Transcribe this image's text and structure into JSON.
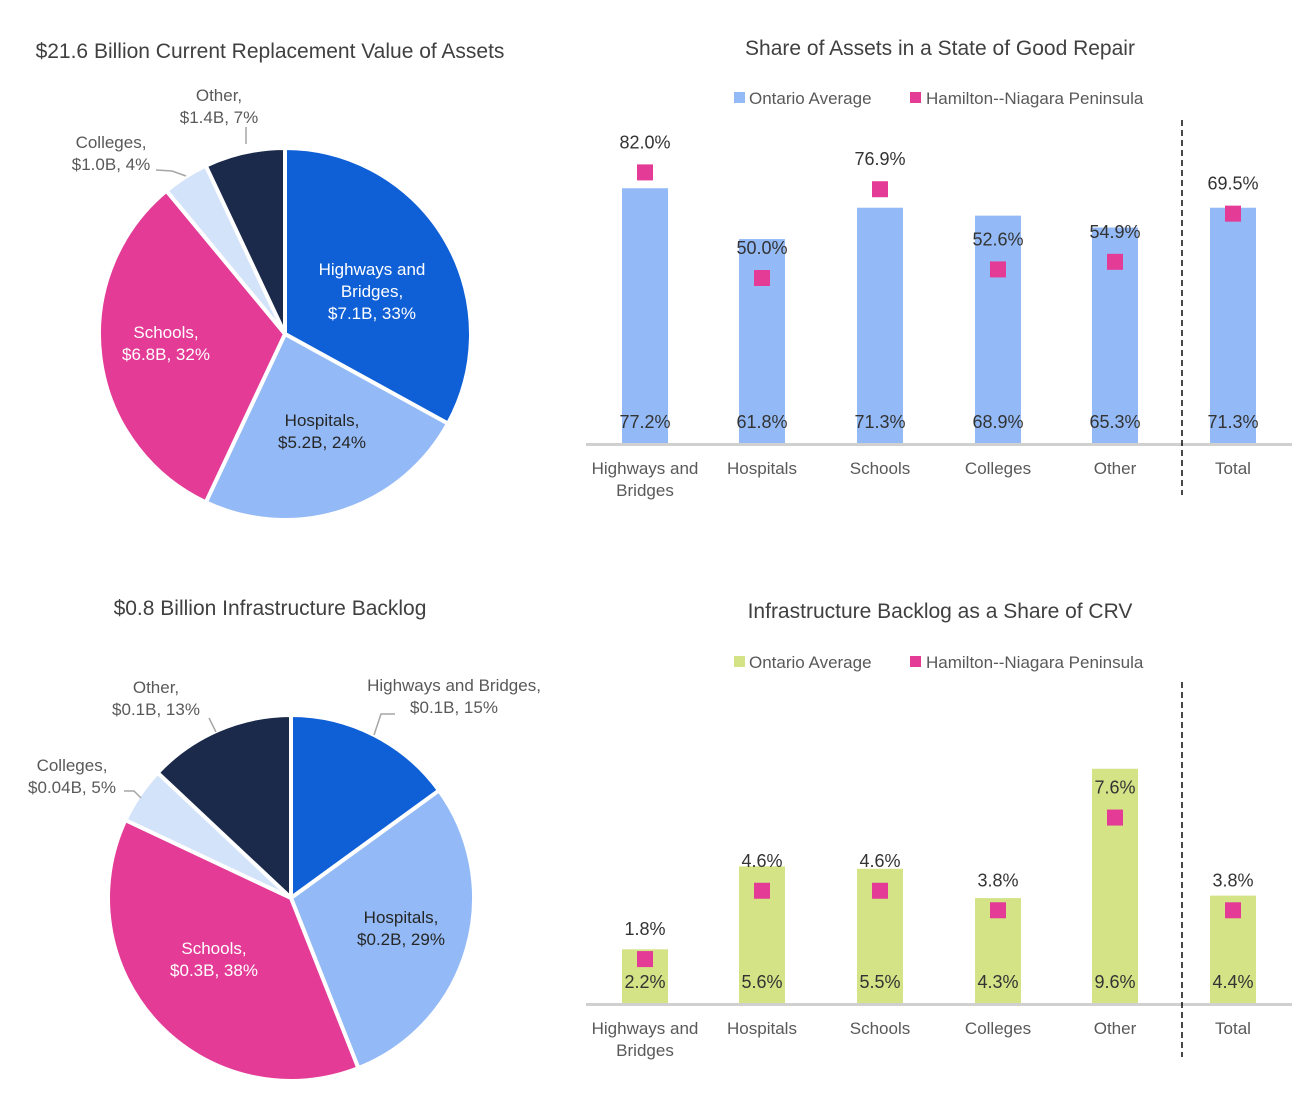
{
  "colors": {
    "highways": "#0F5FD6",
    "hospitals": "#93BAF6",
    "schools": "#E33B96",
    "colleges": "#D3E3FA",
    "other": "#1B2A4A",
    "ontario_blue": "#93BAF6",
    "ontario_green": "#D3E386",
    "hamilton": "#E33B96",
    "axis": "#D0D0D0",
    "text": "#404040"
  },
  "chart_data": [
    {
      "id": "crv-pie",
      "type": "pie",
      "title": "$21.6 Billion Current Replacement Value of Assets",
      "start": "12 o'clock, clockwise",
      "slices": [
        {
          "key": "highways",
          "label_lines": [
            "Highways and",
            "Bridges,",
            "$7.1B, 33%"
          ],
          "value": 7.1,
          "percent": 33
        },
        {
          "key": "hospitals",
          "label_lines": [
            "Hospitals,",
            "$5.2B, 24%"
          ],
          "value": 5.2,
          "percent": 24
        },
        {
          "key": "schools",
          "label_lines": [
            "Schools,",
            "$6.8B, 32%"
          ],
          "value": 6.8,
          "percent": 32
        },
        {
          "key": "colleges",
          "label_lines": [
            "Colleges,",
            "$1.0B, 4%"
          ],
          "value": 1.0,
          "percent": 4
        },
        {
          "key": "other",
          "label_lines": [
            "Other,",
            "$1.4B, 7%"
          ],
          "value": 1.4,
          "percent": 7
        }
      ]
    },
    {
      "id": "sogr-bar",
      "type": "bar",
      "title": "Share of Assets in a State of Good Repair",
      "legend": [
        "Ontario Average",
        "Hamilton--Niagara Peninsula"
      ],
      "legend_position": "top",
      "categories": [
        [
          "Highways and",
          "Bridges"
        ],
        [
          "Hospitals"
        ],
        [
          "Schools"
        ],
        [
          "Colleges"
        ],
        [
          "Other"
        ],
        [
          "Total"
        ]
      ],
      "series": [
        {
          "name": "Ontario Average",
          "kind": "bar",
          "values": [
            77.2,
            61.8,
            71.3,
            68.9,
            65.3,
            71.3
          ],
          "labels": [
            "77.2%",
            "61.8%",
            "71.3%",
            "68.9%",
            "65.3%",
            "71.3%"
          ]
        },
        {
          "name": "Hamilton--Niagara Peninsula",
          "kind": "marker",
          "values": [
            82.0,
            50.0,
            76.9,
            52.6,
            54.9,
            69.5
          ],
          "labels": [
            "82.0%",
            "50.0%",
            "76.9%",
            "52.6%",
            "54.9%",
            "69.5%"
          ]
        }
      ],
      "ylim": [
        0,
        100
      ],
      "separator_before": "Total"
    },
    {
      "id": "backlog-pie",
      "type": "pie",
      "title": "$0.8 Billion Infrastructure Backlog",
      "start": "12 o'clock, clockwise",
      "slices": [
        {
          "key": "highways",
          "label_lines": [
            "Highways and Bridges,",
            "$0.1B, 15%"
          ],
          "value": 0.1,
          "percent": 15
        },
        {
          "key": "hospitals",
          "label_lines": [
            "Hospitals,",
            "$0.2B, 29%"
          ],
          "value": 0.2,
          "percent": 29
        },
        {
          "key": "schools",
          "label_lines": [
            "Schools,",
            "$0.3B, 38%"
          ],
          "value": 0.3,
          "percent": 38
        },
        {
          "key": "colleges",
          "label_lines": [
            "Colleges,",
            "$0.04B, 5%"
          ],
          "value": 0.04,
          "percent": 5
        },
        {
          "key": "other",
          "label_lines": [
            "Other,",
            "$0.1B, 13%"
          ],
          "value": 0.1,
          "percent": 13
        }
      ]
    },
    {
      "id": "backlog-bar",
      "type": "bar",
      "title": "Infrastructure Backlog as a Share of CRV",
      "legend": [
        "Ontario Average",
        "Hamilton--Niagara Peninsula"
      ],
      "legend_position": "top",
      "categories": [
        [
          "Highways and",
          "Bridges"
        ],
        [
          "Hospitals"
        ],
        [
          "Schools"
        ],
        [
          "Colleges"
        ],
        [
          "Other"
        ],
        [
          "Total"
        ]
      ],
      "series": [
        {
          "name": "Ontario Average",
          "kind": "bar",
          "values": [
            2.2,
            5.6,
            5.5,
            4.3,
            9.6,
            4.4
          ],
          "labels": [
            "2.2%",
            "5.6%",
            "5.5%",
            "4.3%",
            "9.6%",
            "4.4%"
          ]
        },
        {
          "name": "Hamilton--Niagara Peninsula",
          "kind": "marker",
          "values": [
            1.8,
            4.6,
            4.6,
            3.8,
            7.6,
            3.8
          ],
          "labels": [
            "1.8%",
            "4.6%",
            "4.6%",
            "3.8%",
            "7.6%",
            "3.8%"
          ]
        }
      ],
      "ylim": [
        0,
        10
      ],
      "separator_before": "Total"
    }
  ]
}
